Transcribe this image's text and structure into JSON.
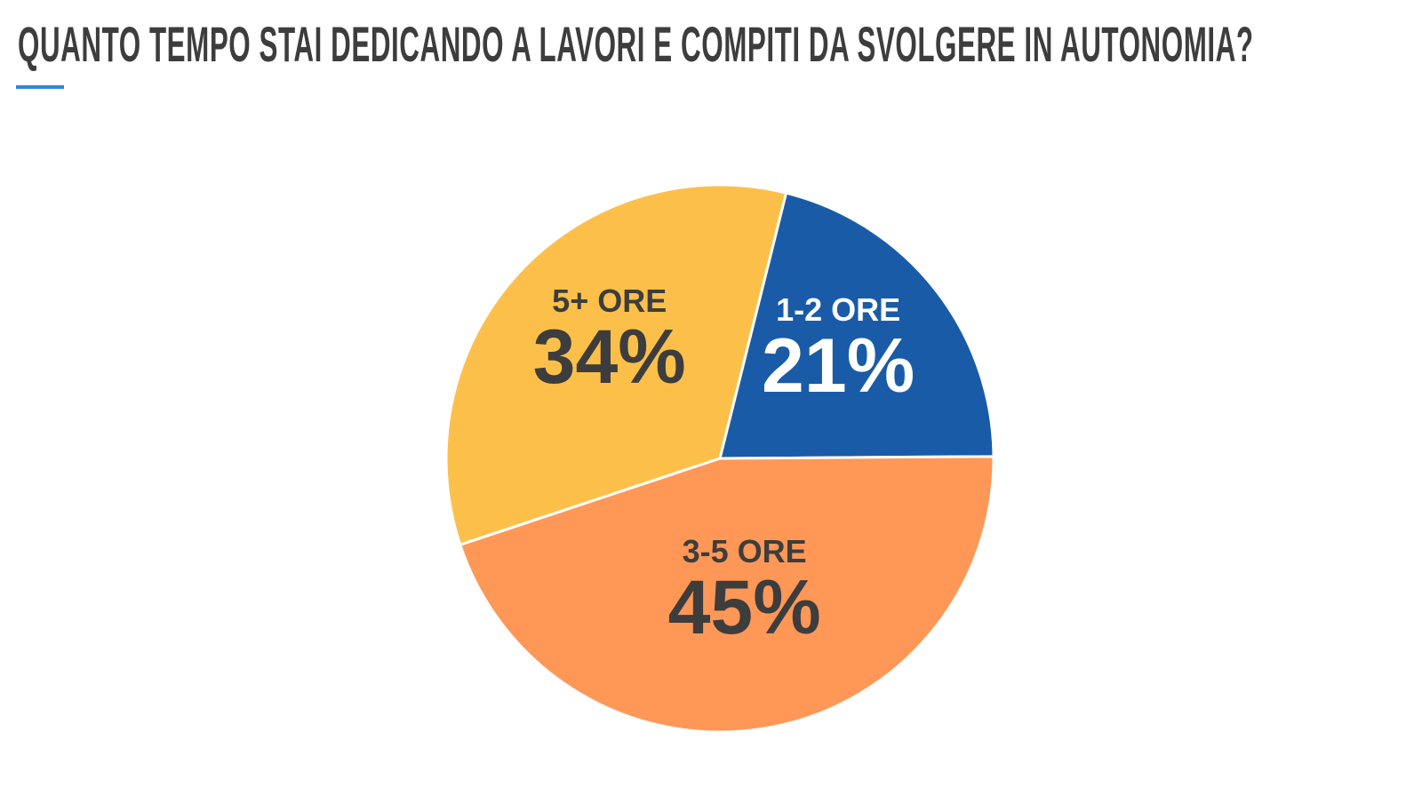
{
  "title": "Quanto tempo stai dedicando a lavori e compiti da svolgere in autonomia?",
  "colors": {
    "title_text": "#3d3d3d",
    "accent_underline": "#2f86d6",
    "label_dark": "#3d3d3d",
    "label_light": "#ffffff"
  },
  "chart_data": {
    "type": "pie",
    "title": "Quanto tempo stai dedicando a lavori e compiti da svolgere in autonomia?",
    "start_angle_deg": 14,
    "direction": "clockwise",
    "slices": [
      {
        "label": "1-2 ORE",
        "value": 21,
        "display": "21%",
        "color": "#1a5ba8",
        "text_color": "#ffffff"
      },
      {
        "label": "3-5 ORE",
        "value": 45,
        "display": "45%",
        "color": "#ff9757",
        "text_color": "#3d3d3d"
      },
      {
        "label": "5+ ORE",
        "value": 34,
        "display": "34%",
        "color": "#fcc04a",
        "text_color": "#3d3d3d"
      }
    ]
  }
}
